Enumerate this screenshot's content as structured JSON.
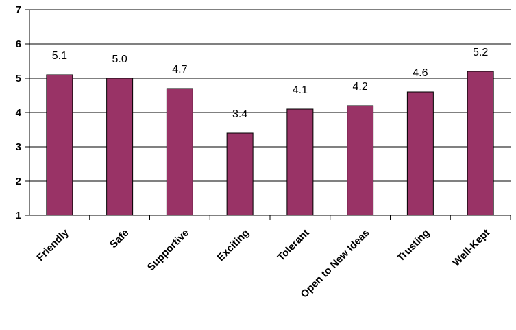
{
  "chart_data": {
    "type": "bar",
    "categories": [
      "Friendly",
      "Safe",
      "Supportive",
      "Exciting",
      "Tolerant",
      "Open to New Ideas",
      "Trusting",
      "Well-Kept"
    ],
    "values": [
      5.1,
      5.0,
      4.7,
      3.4,
      4.1,
      4.2,
      4.6,
      5.2
    ],
    "data_labels": [
      "5.1",
      "5.0",
      "4.7",
      "3.4",
      "4.1",
      "4.2",
      "4.6",
      "5.2"
    ],
    "yticks": [
      "1",
      "2",
      "3",
      "4",
      "5",
      "6",
      "7"
    ],
    "title": "",
    "xlabel": "",
    "ylabel": "",
    "ylim": [
      1,
      7
    ],
    "grid": true,
    "legend": "none",
    "bar_color": "#993366",
    "grid_color": "#000000"
  }
}
